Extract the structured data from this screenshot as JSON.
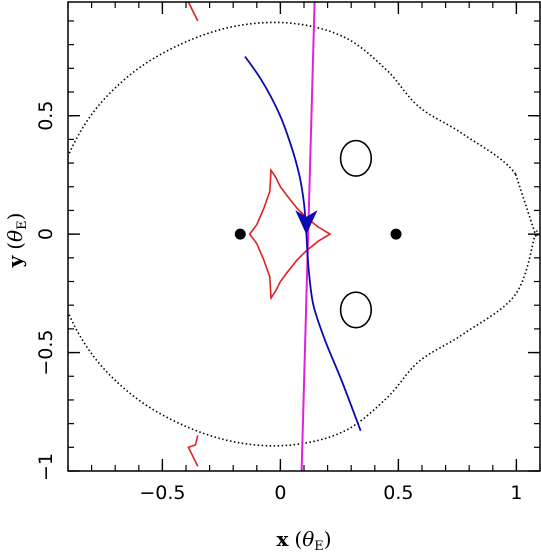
{
  "chart_data": {
    "type": "scatter",
    "title": "",
    "xlabel": {
      "main": "x",
      "open": "(",
      "theta": "θ",
      "sub": "E",
      "close": ")"
    },
    "ylabel": {
      "main": "y",
      "open": "(",
      "theta": "θ",
      "sub": "E",
      "close": ")"
    },
    "xlim": [
      -0.9,
      1.1
    ],
    "ylim": [
      -1.0,
      0.98
    ],
    "xticks": [
      {
        "value": -0.5,
        "label": "−0.5"
      },
      {
        "value": 0,
        "label": "0"
      },
      {
        "value": 0.5,
        "label": "0.5"
      },
      {
        "value": 1,
        "label": "1"
      }
    ],
    "yticks": [
      {
        "value": -1,
        "label": "−1"
      },
      {
        "value": -0.5,
        "label": "−0.5"
      },
      {
        "value": 0,
        "label": "0"
      },
      {
        "value": 0.5,
        "label": "0.5"
      }
    ],
    "x_minor_step": 0.1,
    "y_minor_step": 0.1,
    "grid": false,
    "colors": {
      "caustic": "#dd2222",
      "trajectory": "#0a0ab4",
      "source_path": "#dd22dd",
      "critical_curve": "#000000"
    },
    "lens_masses": [
      {
        "x": -0.17,
        "y": 0.0
      },
      {
        "x": 0.49,
        "y": 0.0
      }
    ],
    "caustic_center": {
      "x": 0.05,
      "y": 0.0
    },
    "outer_critical_curve": [
      {
        "t": 0,
        "r": 1.03
      },
      {
        "t": 15,
        "r": 0.98
      },
      {
        "t": 30,
        "r": 0.84
      },
      {
        "t": 45,
        "r": 0.76
      },
      {
        "t": 60,
        "r": 0.8
      },
      {
        "t": 75,
        "r": 0.86
      },
      {
        "t": 90,
        "r": 0.89
      },
      {
        "t": 105,
        "r": 0.91
      },
      {
        "t": 120,
        "r": 0.93
      },
      {
        "t": 135,
        "r": 0.96
      },
      {
        "t": 150,
        "r": 0.99
      },
      {
        "t": 165,
        "r": 1.01
      },
      {
        "t": 180,
        "r": 1.02
      }
    ],
    "outer_critical_center": {
      "x": 0.05,
      "y": 0.0
    },
    "inner_critical_ovals": [
      {
        "x": 0.32,
        "y": 0.32,
        "rx": 0.065,
        "ry": 0.075
      },
      {
        "x": 0.32,
        "y": -0.32,
        "rx": 0.065,
        "ry": 0.075
      }
    ],
    "central_caustic": [
      [
        0.21,
        0.0
      ],
      [
        0.16,
        0.03
      ],
      [
        0.11,
        0.07
      ],
      [
        0.07,
        0.11
      ],
      [
        0.03,
        0.16
      ],
      [
        0.0,
        0.2
      ],
      [
        -0.02,
        0.24
      ],
      [
        -0.04,
        0.27
      ],
      [
        -0.045,
        0.18
      ],
      [
        -0.07,
        0.11
      ],
      [
        -0.1,
        0.04
      ],
      [
        -0.13,
        0.0
      ],
      [
        -0.1,
        -0.04
      ],
      [
        -0.07,
        -0.11
      ],
      [
        -0.045,
        -0.18
      ],
      [
        -0.04,
        -0.27
      ],
      [
        -0.02,
        -0.24
      ],
      [
        0.0,
        -0.2
      ],
      [
        0.03,
        -0.16
      ],
      [
        0.07,
        -0.11
      ],
      [
        0.11,
        -0.07
      ],
      [
        0.16,
        -0.03
      ],
      [
        0.21,
        0.0
      ]
    ],
    "planetary_caustic_fragments": [
      [
        [
          -0.39,
          0.98
        ],
        [
          -0.37,
          0.94
        ],
        [
          -0.35,
          0.9
        ]
      ],
      [
        [
          -0.35,
          -0.98
        ],
        [
          -0.37,
          -0.94
        ],
        [
          -0.39,
          -0.9
        ],
        [
          -0.36,
          -0.89
        ],
        [
          -0.35,
          -0.85
        ]
      ]
    ],
    "trajectory": [
      [
        -0.15,
        0.75
      ],
      [
        -0.08,
        0.65
      ],
      [
        -0.01,
        0.52
      ],
      [
        0.04,
        0.39
      ],
      [
        0.08,
        0.25
      ],
      [
        0.1,
        0.13
      ],
      [
        0.11,
        0.0
      ],
      [
        0.12,
        -0.15
      ],
      [
        0.14,
        -0.3
      ],
      [
        0.19,
        -0.45
      ],
      [
        0.26,
        -0.62
      ],
      [
        0.34,
        -0.83
      ]
    ],
    "trajectory_arrow": {
      "x": 0.11,
      "y": 0.02,
      "dx": 0.0,
      "dy": -1.0
    },
    "source_path": [
      [
        0.09,
        -1.0
      ],
      [
        0.145,
        0.98
      ]
    ]
  }
}
